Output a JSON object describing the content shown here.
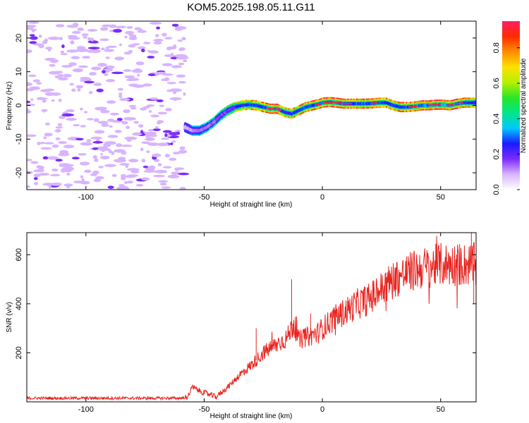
{
  "figure": {
    "title": "KOM5.2025.198.05.11.G11"
  },
  "chart_data": [
    {
      "type": "heatmap",
      "xlabel": "Height of straight line (km)",
      "ylabel": "Frequency (Hz)",
      "colorbar_label": "Normalized spectral amplitude",
      "xlim": [
        -125,
        65
      ],
      "ylim": [
        -25,
        25
      ],
      "xticks": [
        -100,
        -50,
        0,
        50
      ],
      "yticks": [
        20,
        10,
        0,
        -10,
        -20
      ],
      "colorbar_range": [
        0,
        0.95
      ],
      "colorbar_ticks": [
        "0.0",
        "0.2",
        "0.4",
        "0.6",
        "0.8"
      ],
      "colormap": "rainbow (violet to red)",
      "colorbar_stops": [
        "#ffffff",
        "#d8b4fe",
        "#7b2bff",
        "#1a1aff",
        "#00c8ff",
        "#00e68a",
        "#28e628",
        "#b4f000",
        "#ffe000",
        "#ff8c00",
        "#ff2a00",
        "#ff1e64"
      ],
      "noise_region_x": [
        -125,
        -58
      ],
      "ridge": {
        "x": [
          -58,
          -55,
          -52,
          -49,
          -46,
          -43,
          -40,
          -37,
          -34,
          -31,
          -28,
          -25,
          -22,
          -19,
          -16,
          -13,
          -10,
          -7,
          -4,
          -1,
          0,
          3,
          6,
          9,
          12,
          15,
          18,
          21,
          24,
          27,
          30,
          33,
          36,
          39,
          42,
          45,
          48,
          51,
          54,
          57,
          60,
          63,
          65
        ],
        "y": [
          -6.5,
          -7.5,
          -7.5,
          -6.5,
          -5.0,
          -3.0,
          -1.5,
          -0.5,
          0.0,
          0.2,
          0.0,
          -0.5,
          -1.0,
          -1.0,
          -2.0,
          -2.5,
          -1.5,
          -0.5,
          0.0,
          0.5,
          0.8,
          1.0,
          0.8,
          0.5,
          0.5,
          0.5,
          0.5,
          0.6,
          0.8,
          0.8,
          0.0,
          -0.5,
          -0.5,
          -0.3,
          0.0,
          0.0,
          0.2,
          0.2,
          0.0,
          0.5,
          0.8,
          0.8,
          0.8
        ],
        "amp": [
          0.25,
          0.3,
          0.35,
          0.38,
          0.4,
          0.45,
          0.5,
          0.6,
          0.7,
          0.72,
          0.75,
          0.78,
          0.9,
          0.88,
          0.7,
          0.72,
          0.75,
          0.78,
          0.8,
          0.82,
          0.85,
          0.88,
          0.85,
          0.82,
          0.8,
          0.78,
          0.8,
          0.82,
          0.8,
          0.78,
          0.75,
          0.78,
          0.8,
          0.85,
          0.9,
          0.88,
          0.85,
          0.87,
          0.9,
          0.85,
          0.78,
          0.7,
          0.65
        ]
      }
    },
    {
      "type": "line",
      "xlabel": "Height of straight line (km)",
      "ylabel": "SNR (v/v)",
      "xlim": [
        -125,
        65
      ],
      "ylim": [
        0,
        690
      ],
      "xticks": [
        -100,
        -50,
        0,
        50
      ],
      "yticks": [
        200,
        400,
        600
      ],
      "color": "#e8231e",
      "trend": {
        "x": [
          -125,
          -100,
          -80,
          -60,
          -57,
          -55,
          -52,
          -48,
          -45,
          -40,
          -35,
          -30,
          -25,
          -20,
          -15,
          -12,
          -10,
          -8,
          -5,
          -2,
          0,
          5,
          10,
          15,
          20,
          25,
          30,
          35,
          40,
          45,
          50,
          55,
          60,
          65
        ],
        "y": [
          15,
          15,
          15,
          15,
          20,
          60,
          45,
          30,
          20,
          60,
          110,
          150,
          200,
          230,
          260,
          320,
          250,
          260,
          270,
          280,
          300,
          340,
          370,
          400,
          420,
          460,
          500,
          520,
          540,
          550,
          560,
          560,
          560,
          560
        ]
      },
      "spikes": [
        {
          "x": -13,
          "y": 500
        },
        {
          "x": -28,
          "y": 300
        },
        {
          "x": -5,
          "y": 360
        },
        {
          "x": 63,
          "y": 690
        },
        {
          "x": 64,
          "y": 400
        }
      ]
    }
  ]
}
